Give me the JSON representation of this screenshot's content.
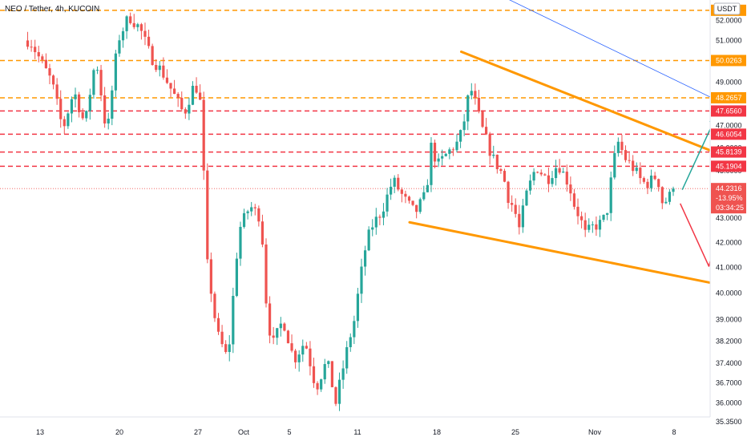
{
  "header": {
    "title": "NEO / Tether, 4h, KUCOIN"
  },
  "colors": {
    "up": "#26a69a",
    "down": "#ef5350",
    "resistance_line": "#f23645",
    "support_level": "#ff9800",
    "trend_line": "#ff9800",
    "diag_line": "#2962ff",
    "arrow_up": "#26a69a",
    "arrow_down": "#f23645"
  },
  "chart_data": {
    "type": "candlestick",
    "title": "NEO / Tether, 4h, KUCOIN",
    "currency": "USDT",
    "y_scale": "log",
    "ylim": [
      35.35,
      53.2
    ],
    "y_ticks": [
      {
        "value": 52.0,
        "label": "52.0000"
      },
      {
        "value": 51.0,
        "label": "51.0000"
      },
      {
        "value": 49.0,
        "label": "49.0000"
      },
      {
        "value": 47.0,
        "label": "47.0000"
      },
      {
        "value": 46.0,
        "label": "46.0000"
      },
      {
        "value": 45.0,
        "label": "45.0000"
      },
      {
        "value": 43.0,
        "label": "43.0000"
      },
      {
        "value": 42.0,
        "label": "42.0000"
      },
      {
        "value": 41.0,
        "label": "41.0000"
      },
      {
        "value": 40.0,
        "label": "40.0000"
      },
      {
        "value": 39.0,
        "label": "39.0000"
      },
      {
        "value": 38.2,
        "label": "38.2000"
      },
      {
        "value": 37.4,
        "label": "37.4000"
      },
      {
        "value": 36.7,
        "label": "36.7000"
      },
      {
        "value": 36.0,
        "label": "36.0000"
      },
      {
        "value": 35.35,
        "label": "35.3500"
      }
    ],
    "x_ticks": [
      "13",
      "20",
      "27",
      "Oct",
      "5",
      "11",
      "18",
      "25",
      "Nov",
      "8"
    ],
    "levels": [
      {
        "value": 52.5,
        "label": "52.5",
        "style": "support"
      },
      {
        "value": 50.0263,
        "label": "50.0263",
        "style": "support"
      },
      {
        "value": 48.2657,
        "label": "48.2657",
        "style": "support"
      },
      {
        "value": 47.656,
        "label": "47.6560",
        "style": "resistance"
      },
      {
        "value": 46.6054,
        "label": "46.6054",
        "style": "resistance"
      },
      {
        "value": 45.8139,
        "label": "45.8139",
        "style": "resistance"
      },
      {
        "value": 45.1904,
        "label": "45.1904",
        "style": "resistance"
      }
    ],
    "last_price": {
      "value": 44.2316,
      "label": "44.2316",
      "change": "-13.95%",
      "countdown": "03:34:25"
    },
    "candle_anchors": [
      {
        "d": -1,
        "p": 51.0
      },
      {
        "d": 1,
        "p": 49.0
      },
      {
        "d": 2,
        "p": 46.8
      },
      {
        "d": 3,
        "p": 48.6
      },
      {
        "d": 4,
        "p": 47.0
      },
      {
        "d": 5,
        "p": 50.2
      },
      {
        "d": 6,
        "p": 46.5
      },
      {
        "d": 7,
        "p": 51.0
      },
      {
        "d": 8,
        "p": 52.2
      },
      {
        "d": 9,
        "p": 51.6
      },
      {
        "d": 10,
        "p": 50.2
      },
      {
        "d": 11,
        "p": 49.5
      },
      {
        "d": 12,
        "p": 48.5
      },
      {
        "d": 13,
        "p": 47.5
      },
      {
        "d": 14,
        "p": 49.0
      },
      {
        "d": 14.5,
        "p": 48.0
      },
      {
        "d": 14.8,
        "p": 44.8
      },
      {
        "d": 15,
        "p": 41.5
      },
      {
        "d": 16,
        "p": 38.5
      },
      {
        "d": 17,
        "p": 37.5
      },
      {
        "d": 18,
        "p": 42.5
      },
      {
        "d": 19,
        "p": 43.5
      },
      {
        "d": 20,
        "p": 43.0
      },
      {
        "d": 20.5,
        "p": 39.5
      },
      {
        "d": 21,
        "p": 38.0
      },
      {
        "d": 22,
        "p": 39.0
      },
      {
        "d": 23,
        "p": 37.5
      },
      {
        "d": 24,
        "p": 38.2
      },
      {
        "d": 25,
        "p": 36.5
      },
      {
        "d": 26,
        "p": 37.5
      },
      {
        "d": 26.8,
        "p": 36.0
      },
      {
        "d": 27.5,
        "p": 37.3
      },
      {
        "d": 28,
        "p": 38.2
      },
      {
        "d": 28.5,
        "p": 39.0
      },
      {
        "d": 29,
        "p": 40.5
      },
      {
        "d": 29.5,
        "p": 41.8
      },
      {
        "d": 30,
        "p": 42.6
      },
      {
        "d": 31,
        "p": 43.3
      },
      {
        "d": 32,
        "p": 44.6
      },
      {
        "d": 33,
        "p": 43.8
      },
      {
        "d": 34,
        "p": 43.2
      },
      {
        "d": 35,
        "p": 44.0
      },
      {
        "d": 35.5,
        "p": 46.2
      },
      {
        "d": 36,
        "p": 45.2
      },
      {
        "d": 37,
        "p": 45.8
      },
      {
        "d": 38,
        "p": 46.3
      },
      {
        "d": 38.5,
        "p": 47.3
      },
      {
        "d": 39,
        "p": 48.8
      },
      {
        "d": 39.5,
        "p": 48.0
      },
      {
        "d": 40,
        "p": 47.0
      },
      {
        "d": 41,
        "p": 45.6
      },
      {
        "d": 42,
        "p": 44.8
      },
      {
        "d": 42.5,
        "p": 43.8
      },
      {
        "d": 43,
        "p": 43.4
      },
      {
        "d": 43.5,
        "p": 42.5
      },
      {
        "d": 44,
        "p": 43.8
      },
      {
        "d": 45,
        "p": 45.2
      },
      {
        "d": 46,
        "p": 44.6
      },
      {
        "d": 47,
        "p": 45.3
      },
      {
        "d": 48,
        "p": 44.4
      },
      {
        "d": 48.5,
        "p": 43.5
      },
      {
        "d": 49,
        "p": 43.0
      },
      {
        "d": 49.5,
        "p": 42.3
      },
      {
        "d": 50,
        "p": 42.6
      },
      {
        "d": 51,
        "p": 42.8
      },
      {
        "d": 51.5,
        "p": 43.4
      },
      {
        "d": 52,
        "p": 45.3
      },
      {
        "d": 52.5,
        "p": 46.3
      },
      {
        "d": 53,
        "p": 45.6
      },
      {
        "d": 54,
        "p": 45.0
      },
      {
        "d": 54.5,
        "p": 44.6
      },
      {
        "d": 55,
        "p": 44.4
      },
      {
        "d": 56,
        "p": 44.8
      },
      {
        "d": 56.5,
        "p": 43.6
      },
      {
        "d": 57,
        "p": 43.8
      },
      {
        "d": 57.5,
        "p": 44.2316
      }
    ],
    "drawings": {
      "upper_trendline": [
        {
          "d": 38.2,
          "p": 50.45
        },
        {
          "d": 66.0,
          "p": 44.9
        }
      ],
      "lower_trendline": [
        {
          "d": 33.5,
          "p": 42.82
        },
        {
          "d": 65.9,
          "p": 39.97
        }
      ],
      "blue_diagonal": [
        {
          "d": 40.5,
          "p": 53.6
        },
        {
          "d": 74.4,
          "p": 45.05
        }
      ],
      "green_arrow": [
        {
          "d": 58.3,
          "p": 44.2
        },
        {
          "d": 61.3,
          "p": 47.35
        }
      ],
      "red_path": [
        {
          "d": 58.1,
          "p": 43.6
        },
        {
          "d": 60.7,
          "p": 41.05
        },
        {
          "d": 64.4,
          "p": 47.45
        }
      ],
      "red_corner_line": [
        {
          "d": 69.3,
          "p": 35.35
        },
        {
          "d": 74.4,
          "p": 35.85
        }
      ]
    }
  }
}
